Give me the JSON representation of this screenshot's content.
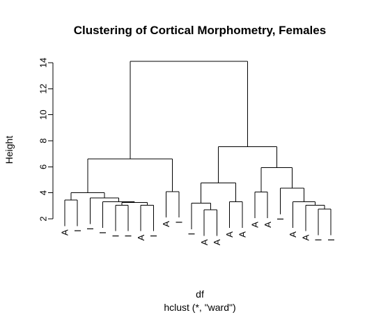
{
  "chart_data": {
    "type": "dendrogram",
    "title": "Clustering of Cortical Morphometry, Females",
    "ylabel": "Height",
    "xlabel": "df",
    "sublabel": "hclust (*, \"ward\")",
    "ylim": [
      2,
      14
    ],
    "yticks": [
      2,
      4,
      6,
      8,
      10,
      12,
      14
    ],
    "tree": {
      "h": 14.1,
      "children": [
        {
          "h": 6.6,
          "children": [
            {
              "h": 4.0,
              "children": [
                {
                  "h": 3.45,
                  "children": [
                    {
                      "label": "A"
                    },
                    {
                      "label": "I"
                    }
                  ]
                },
                {
                  "h": 3.6,
                  "children": [
                    {
                      "label": "I"
                    },
                    {
                      "h": 3.3,
                      "children": [
                        {
                          "label": "I"
                        },
                        {
                          "h": 3.25,
                          "children": [
                            {
                              "h": 3.05,
                              "children": [
                                {
                                  "label": "I"
                                },
                                {
                                  "label": "I"
                                }
                              ]
                            },
                            {
                              "h": 3.05,
                              "children": [
                                {
                                  "label": "A"
                                },
                                {
                                  "label": "I"
                                }
                              ]
                            }
                          ]
                        }
                      ]
                    }
                  ]
                }
              ]
            },
            {
              "h": 4.1,
              "children": [
                {
                  "label": "A"
                },
                {
                  "label": "I"
                }
              ]
            }
          ]
        },
        {
          "h": 7.55,
          "children": [
            {
              "h": 4.75,
              "children": [
                {
                  "h": 3.2,
                  "children": [
                    {
                      "label": "I"
                    },
                    {
                      "h": 2.7,
                      "children": [
                        {
                          "label": "A"
                        },
                        {
                          "label": "A"
                        }
                      ]
                    }
                  ]
                },
                {
                  "h": 3.3,
                  "children": [
                    {
                      "label": "A"
                    },
                    {
                      "label": "A"
                    }
                  ]
                }
              ]
            },
            {
              "h": 5.95,
              "children": [
                {
                  "h": 4.05,
                  "children": [
                    {
                      "label": "A"
                    },
                    {
                      "label": "A"
                    }
                  ]
                },
                {
                  "h": 4.35,
                  "children": [
                    {
                      "label": "I"
                    },
                    {
                      "h": 3.3,
                      "children": [
                        {
                          "label": "A"
                        },
                        {
                          "h": 3.05,
                          "children": [
                            {
                              "label": "A"
                            },
                            {
                              "h": 2.75,
                              "children": [
                                {
                                  "label": "I"
                                },
                                {
                                  "label": "I"
                                }
                              ]
                            }
                          ]
                        }
                      ]
                    }
                  ]
                }
              ]
            }
          ]
        }
      ]
    }
  }
}
